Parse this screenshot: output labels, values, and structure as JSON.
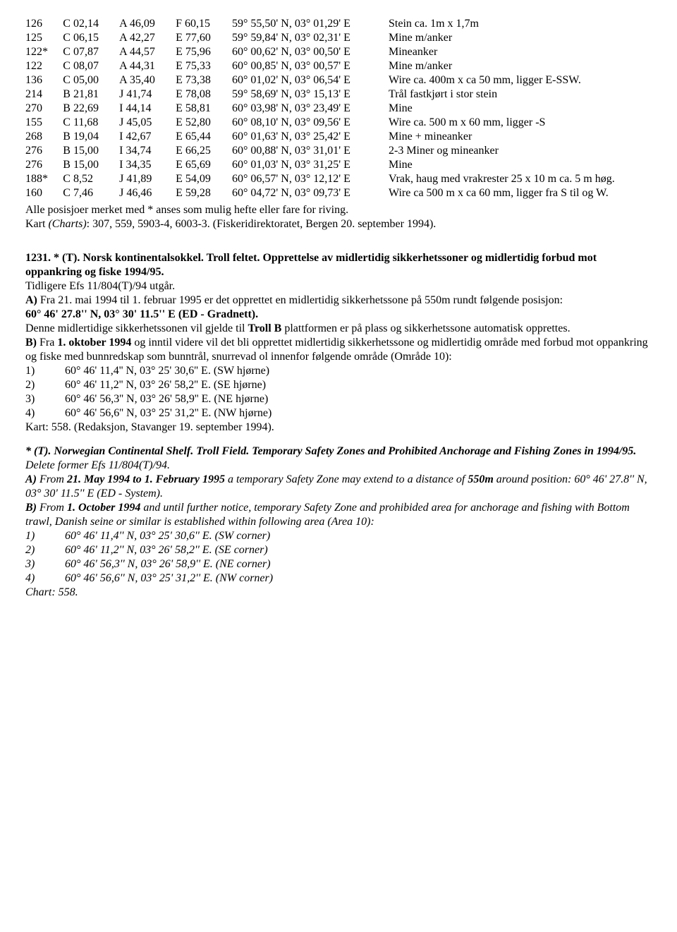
{
  "table": {
    "col_widths_pct": [
      6,
      9,
      9,
      9,
      25,
      42
    ],
    "rows": [
      {
        "c0": "126",
        "c1": "C 02,14",
        "c2": "A 46,09",
        "c3": "F 60,15",
        "c4": "59° 55,50' N, 03° 01,29' E",
        "c5": "Stein ca. 1m x 1,7m"
      },
      {
        "c0": "125",
        "c1": "C 06,15",
        "c2": "A 42,27",
        "c3": "E 77,60",
        "c4": "59° 59,84' N, 03° 02,31' E",
        "c5": "Mine m/anker"
      },
      {
        "c0": "122*",
        "c1": "C 07,87",
        "c2": "A 44,57",
        "c3": "E 75,96",
        "c4": "60° 00,62' N, 03° 00,50' E",
        "c5": "Mineanker"
      },
      {
        "c0": "122",
        "c1": "C 08,07",
        "c2": "A 44,31",
        "c3": "E 75,33",
        "c4": "60° 00,85' N, 03° 00,57' E",
        "c5": "Mine m/anker"
      },
      {
        "c0": "136",
        "c1": "C 05,00",
        "c2": "A 35,40",
        "c3": "E 73,38",
        "c4": "60° 01,02' N, 03° 06,54' E",
        "c5": "Wire ca. 400m x ca 50 mm, ligger E-SSW."
      },
      {
        "c0": "214",
        "c1": "B 21,81",
        "c2": "J 41,74",
        "c3": "E 78,08",
        "c4": "59° 58,69' N, 03° 15,13' E",
        "c5": "Trål fastkjørt i stor stein"
      },
      {
        "c0": "270",
        "c1": "B 22,69",
        "c2": "I 44,14",
        "c3": "E 58,81",
        "c4": "60° 03,98' N, 03° 23,49' E",
        "c5": "Mine"
      },
      {
        "c0": "155",
        "c1": "C 11,68",
        "c2": "J 45,05",
        "c3": "E 52,80",
        "c4": "60° 08,10' N, 03° 09,56' E",
        "c5": "Wire ca. 500 m x 60 mm, ligger -S"
      },
      {
        "c0": "268",
        "c1": "B 19,04",
        "c2": "I 42,67",
        "c3": "E 65,44",
        "c4": "60° 01,63' N, 03° 25,42' E",
        "c5": "Mine + mineanker"
      },
      {
        "c0": "276",
        "c1": "B 15,00",
        "c2": "I 34,74",
        "c3": "E 66,25",
        "c4": "60° 00,88' N, 03° 31,01' E",
        "c5": "2-3 Miner og mineanker"
      },
      {
        "c0": "276",
        "c1": "B 15,00",
        "c2": "I 34,35",
        "c3": "E 65,69",
        "c4": "60° 01,03' N, 03° 31,25' E",
        "c5": "Mine"
      },
      {
        "c0": "188*",
        "c1": "C 8,52",
        "c2": "J 41,89",
        "c3": "E 54,09",
        "c4": "60° 06,57' N, 03° 12,12' E",
        "c5": "Vrak, haug med vrakrester 25 x 10 m ca. 5 m høg."
      },
      {
        "c0": "160",
        "c1": "C 7,46",
        "c2": "J 46,46",
        "c3": "E 59,28",
        "c4": "60° 04,72' N, 03° 09,73' E",
        "c5": "Wire ca 500 m x ca 60 mm, ligger fra S til og W."
      }
    ]
  },
  "note_after_table_1": "Alle posisjoer merket med * anses som mulig hefte eller fare for riving.",
  "note_after_table_2_pre": "Kart ",
  "note_after_table_2_it": "(Charts)",
  "note_after_table_2_post": ": 307, 559, 5903-4, 6003-3. (Fiskeridirektoratet, Bergen 20. september 1994).",
  "sec1": {
    "title": "1231. * (T). Norsk kontinentalsokkel. Troll feltet. Opprettelse av midlertidig sikkerhetssoner og midlertidig forbud mot oppankring og fiske 1994/95.",
    "line1": "Tidligere Efs 11/804(T)/94 utgår.",
    "A_label": "A)",
    "A_text": " Fra 21. mai 1994 til 1. februar 1995 er det opprettet en midlertidig sikkerhetssone på 550m rundt følgende posisjon:",
    "A_coord": "60° 46' 27.8'' N, 03° 30' 11.5'' E (ED - Gradnett).",
    "A_after1": "Denne midlertidige sikkerhetssonen vil gjelde til ",
    "A_after1_bold": "Troll B",
    "A_after1_tail": " plattformen er på plass og sikkerhetssone automatisk opprettes.",
    "B_label": "B)",
    "B_text1": " Fra ",
    "B_text1_bold": "1. oktober 1994",
    "B_text1_tail": " og inntil videre vil det bli opprettet midlertidig sikkerhetssone og midlertidig område med forbud mot oppankring og fiske med bunnredskap som bunntrål, snurrevad ol innenfor følgende område (Område 10):",
    "corners": [
      {
        "n": "1)",
        "coord": "60° 46' 11,4'' N, 03° 25' 30,6'' E. (SW hjørne)"
      },
      {
        "n": "2)",
        "coord": "60° 46' 11,2'' N, 03° 26' 58,2'' E. (SE hjørne)"
      },
      {
        "n": "3)",
        "coord": "60° 46' 56,3'' N, 03° 26' 58,9'' E. (NE hjørne)"
      },
      {
        "n": "4)",
        "coord": "60° 46' 56,6'' N, 03° 25' 31,2'' E. (NW hjørne)"
      }
    ],
    "kart": "Kart: 558. (Redaksjon, Stavanger 19. september 1994)."
  },
  "sec2": {
    "title": "* (T). Norwegian Continental Shelf. Troll Field. Temporary Safety Zones and Prohibited Anchorage and Fishing Zones in 1994/95.",
    "line1": "Delete former Efs 11/804(T)/94.",
    "A_label": "A)",
    "A_pre": " From ",
    "A_b1": "21. May 1994 to 1. February 1995",
    "A_mid": " a temporary Safety Zone may extend to a distance of ",
    "A_b2": "550m",
    "A_tail": " around position: 60° 46' 27.8'' N, 03° 30' 11.5'' E (ED - System).",
    "B_label": "B)",
    "B_pre": " From ",
    "B_b1": "1. October 1994",
    "B_tail": " and until further notice, temporary Safety Zone and  prohibided area for anchorage and fishing with Bottom trawl, Danish seine or similar is established within following area (Area 10):",
    "corners": [
      {
        "n": "1)",
        "coord": "60° 46' 11,4'' N, 03° 25' 30,6'' E. (SW corner)"
      },
      {
        "n": "2)",
        "coord": "60° 46' 11,2'' N, 03° 26' 58,2'' E. (SE corner)"
      },
      {
        "n": "3)",
        "coord": "60° 46' 56,3'' N, 03° 26' 58,9'' E. (NE corner)"
      },
      {
        "n": "4)",
        "coord": "60° 46' 56,6'' N, 03° 25' 31,2'' E. (NW corner)"
      }
    ],
    "chart": "Chart: 558."
  }
}
